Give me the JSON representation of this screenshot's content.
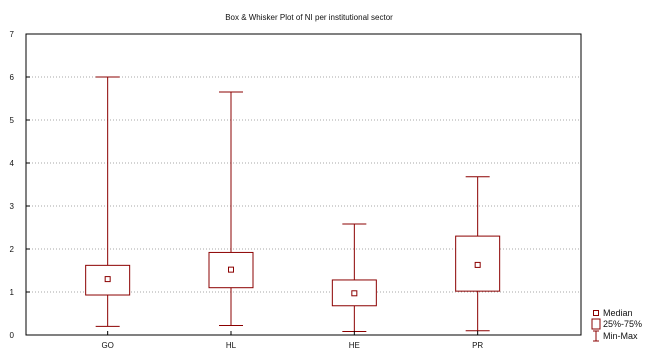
{
  "chart_data": {
    "type": "box",
    "title": "Box & Whisker Plot of NI per institutional sector",
    "xlabel": "",
    "ylabel": "",
    "ylim": [
      0,
      7
    ],
    "yticks": [
      0,
      1,
      2,
      3,
      4,
      5,
      6,
      7
    ],
    "grid": {
      "horizontal": true,
      "style": "dotted"
    },
    "categories": [
      "GO",
      "HL",
      "HE",
      "PR"
    ],
    "boxes": [
      {
        "category": "GO",
        "min": 0.2,
        "q1": 0.93,
        "median": 1.3,
        "q3": 1.62,
        "max": 6.0
      },
      {
        "category": "HL",
        "min": 0.22,
        "q1": 1.1,
        "median": 1.52,
        "q3": 1.92,
        "max": 5.65
      },
      {
        "category": "HE",
        "min": 0.08,
        "q1": 0.68,
        "median": 0.97,
        "q3": 1.28,
        "max": 2.58
      },
      {
        "category": "PR",
        "min": 0.1,
        "q1": 1.02,
        "median": 1.63,
        "q3": 2.3,
        "max": 3.68
      }
    ],
    "legend": {
      "position": "right-bottom",
      "entries": [
        {
          "symbol": "median-square",
          "label": "Median"
        },
        {
          "symbol": "box",
          "label": "25%-75%"
        },
        {
          "symbol": "whisker",
          "label": "Min-Max"
        }
      ]
    },
    "colors": {
      "series": "#8b0000",
      "grid": "#8a8a8a",
      "axis": "#000000"
    }
  }
}
